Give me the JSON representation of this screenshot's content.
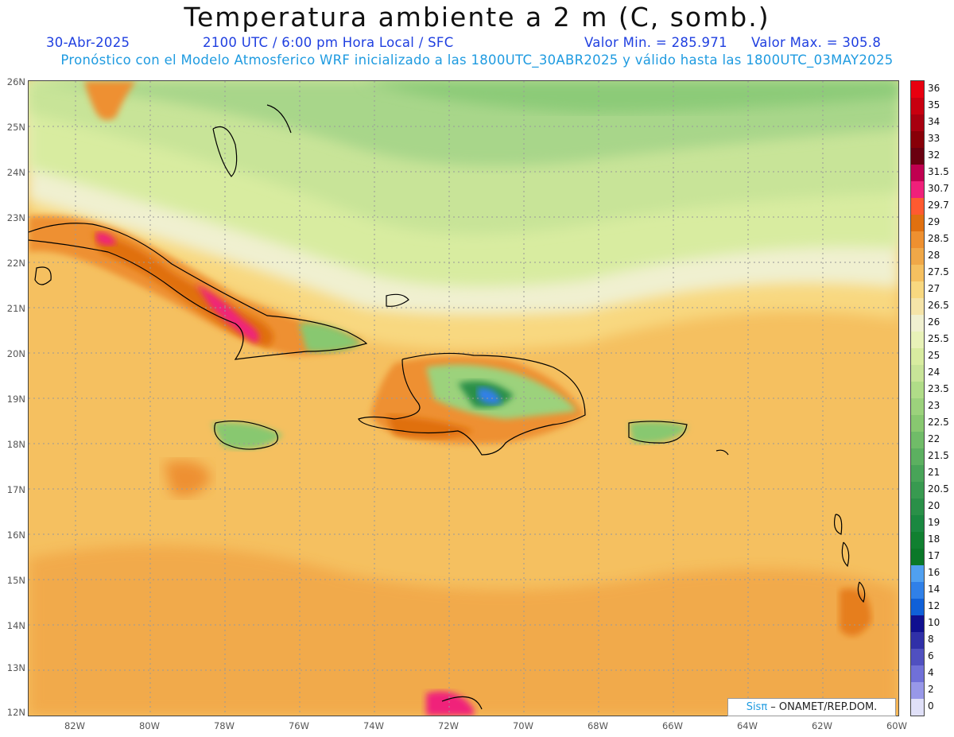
{
  "header": {
    "title": "Temperatura ambiente a 2 m (C, somb.)",
    "date": "30-Abr-2025",
    "time": "2100 UTC / 6:00 pm Hora Local / SFC",
    "vmin": "Valor Min. = 285.971",
    "vmax": "Valor Max. = 305.8",
    "model": "Pronóstico con el Modelo Atmosferico WRF inicializado a las 1800UTC_30ABR2025 y válido hasta las  1800UTC_03MAY2025"
  },
  "axes": {
    "lat_labels": [
      "26N",
      "25N",
      "24N",
      "23N",
      "22N",
      "21N",
      "20N",
      "19N",
      "18N",
      "17N",
      "16N",
      "15N",
      "14N",
      "13N",
      "12N"
    ],
    "lon_labels": [
      "82W",
      "80W",
      "78W",
      "76W",
      "74W",
      "72W",
      "70W",
      "68W",
      "66W",
      "64W",
      "62W",
      "60W"
    ]
  },
  "colorbar": {
    "labels": [
      "36",
      "35",
      "34",
      "33",
      "32",
      "31.5",
      "30.7",
      "29.7",
      "29",
      "28.5",
      "28",
      "27.5",
      "27",
      "26.5",
      "26",
      "25.5",
      "25",
      "24",
      "23.5",
      "23",
      "22.5",
      "22",
      "21.5",
      "21",
      "20.5",
      "20",
      "19",
      "18",
      "17",
      "16",
      "14",
      "12",
      "10",
      "8",
      "6",
      "4",
      "2",
      "0"
    ],
    "colors": [
      "#e8000f",
      "#c80010",
      "#a80010",
      "#880008",
      "#6a0010",
      "#c00050",
      "#f0207a",
      "#ff5a30",
      "#e07010",
      "#ee9030",
      "#f0a848",
      "#f5c060",
      "#f8d880",
      "#f5e4a8",
      "#f0f0d0",
      "#e8f2b8",
      "#d8eca0",
      "#c8e498",
      "#b0dc88",
      "#9cd27c",
      "#88c870",
      "#70bc68",
      "#5cb060",
      "#48a458",
      "#389a50",
      "#2a9048",
      "#1a8840",
      "#108030",
      "#0a7828",
      "#50a0f0",
      "#3080e8",
      "#1060d8",
      "#101090",
      "#3030a8",
      "#5050c0",
      "#7070d8",
      "#9898e8",
      "#e0e0f8"
    ]
  },
  "credit": {
    "brand": "Sisπ",
    "text": " – ONAMET/REP.DOM."
  },
  "palette": {
    "warm": "#f5c060",
    "orange": "#e88a30",
    "green_light": "#c8e498",
    "green_mid": "#a8d68a",
    "green_dark": "#8ccb78",
    "cream": "#f0f0d0",
    "magenta": "#f0207a",
    "land_green": "#2a9048",
    "blue": "#3080e8"
  }
}
